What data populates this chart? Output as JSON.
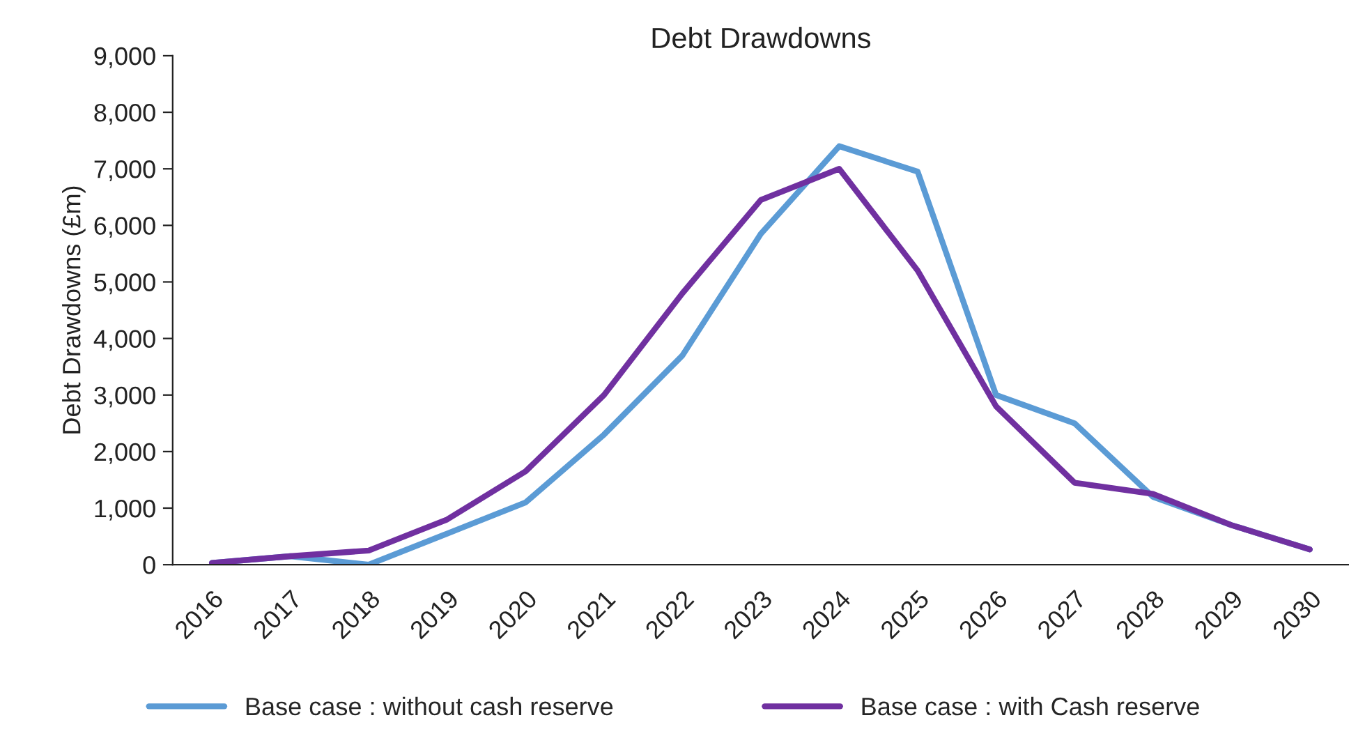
{
  "chart_data": {
    "type": "line",
    "title": "Debt Drawdowns",
    "ylabel": "Debt Drawdowns (£m)",
    "categories": [
      "2016",
      "2017",
      "2018",
      "2019",
      "2020",
      "2021",
      "2022",
      "2023",
      "2024",
      "2025",
      "2026",
      "2027",
      "2028",
      "2029",
      "2030"
    ],
    "series": [
      {
        "name": "Base case : without cash reserve",
        "color": "#5b9bd5",
        "values": [
          30,
          150,
          0,
          550,
          1100,
          2300,
          3700,
          5850,
          7400,
          6950,
          3000,
          2500,
          1200,
          700,
          270
        ]
      },
      {
        "name": "Base case : with Cash reserve",
        "color": "#7030a0",
        "values": [
          30,
          150,
          250,
          800,
          1650,
          3000,
          4800,
          6450,
          7000,
          5200,
          2800,
          1450,
          1250,
          700,
          270
        ]
      }
    ],
    "ylim": [
      0,
      9000
    ],
    "yticks": [
      {
        "value": 0,
        "label": "0"
      },
      {
        "value": 1000,
        "label": "1,000"
      },
      {
        "value": 2000,
        "label": "2,000"
      },
      {
        "value": 3000,
        "label": "3,000"
      },
      {
        "value": 4000,
        "label": "4,000"
      },
      {
        "value": 5000,
        "label": "5,000"
      },
      {
        "value": 6000,
        "label": "6,000"
      },
      {
        "value": 7000,
        "label": "7,000"
      },
      {
        "value": 8000,
        "label": "8,000"
      },
      {
        "value": 9000,
        "label": "9,000"
      }
    ],
    "grid": false,
    "legend": "bottom",
    "marker": "none",
    "line_style": "solid"
  }
}
